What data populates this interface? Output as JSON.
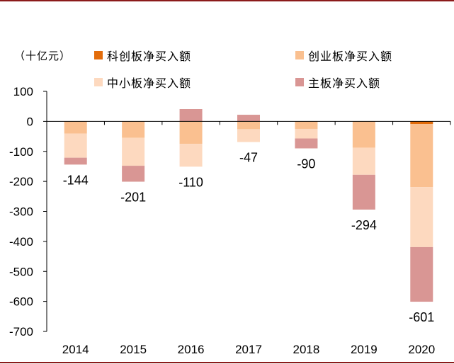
{
  "chart_data": {
    "type": "bar",
    "stacked": true,
    "unit_label": "（十亿元）",
    "categories": [
      "2014",
      "2015",
      "2016",
      "2017",
      "2018",
      "2019",
      "2020"
    ],
    "series": [
      {
        "name": "科创板净买入额",
        "color": "#e36c0a",
        "values": [
          0,
          0,
          0,
          0,
          0,
          0,
          -9
        ]
      },
      {
        "name": "创业板净买入额",
        "color": "#fac090",
        "values": [
          -41,
          -55,
          -75,
          -26,
          -25,
          -88,
          -210
        ]
      },
      {
        "name": "中小板净买入额",
        "color": "#fdd9bf",
        "values": [
          -80,
          -93,
          -76,
          -43,
          -32,
          -90,
          -200
        ]
      },
      {
        "name": "主板净买入额",
        "color": "#d99694",
        "values": [
          -23,
          -53,
          41,
          22,
          -33,
          -116,
          -182
        ]
      }
    ],
    "totals": [
      -144,
      -201,
      -110,
      -47,
      -90,
      -294,
      -601
    ],
    "total_labels": [
      "-144",
      "-201",
      "-110",
      "-47",
      "-90",
      "-294",
      "-601"
    ],
    "ylim": [
      -700,
      100
    ],
    "yticks": [
      100,
      0,
      -100,
      -200,
      -300,
      -400,
      -500,
      -600,
      -700
    ],
    "ytick_labels": [
      "100",
      "0",
      "-100",
      "-200",
      "-300",
      "-400",
      "-500",
      "-600",
      "-700"
    ],
    "grid": false,
    "legend_position": "top"
  }
}
